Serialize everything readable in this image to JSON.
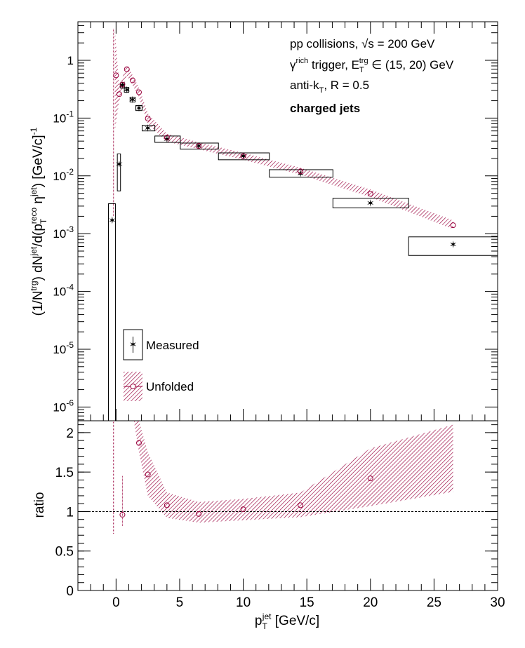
{
  "chart_data": [
    {
      "panel": "top",
      "type": "scatter",
      "y_scale": "log",
      "xlim": [
        -3,
        30
      ],
      "ylim": [
        5e-07,
        5
      ],
      "y_ticks": [
        {
          "v": 1e-06,
          "exp": "-6"
        },
        {
          "v": 1e-05,
          "exp": "-5"
        },
        {
          "v": 0.0001,
          "exp": "-4"
        },
        {
          "v": 0.001,
          "exp": "-3"
        },
        {
          "v": 0.01,
          "exp": "-2"
        },
        {
          "v": 0.1,
          "exp": "-1"
        },
        {
          "v": 1,
          "label": "1"
        }
      ],
      "ylabel": {
        "a": "(1/N",
        "a_sup": "trg",
        "b": ") dN",
        "b_sup": "jet",
        "c": "/d(p",
        "c_sub": "T",
        "c_sup": "reco",
        "d": " η",
        "d_sup": "jet",
        "e": ") [GeV/c]",
        "e_sup": "-1"
      },
      "annotations": {
        "line1": "pp collisions, ",
        "line1_root": "√",
        "line1_rest": "s = 200 GeV",
        "line2_a": "γ",
        "line2_a_sup": "rich",
        "line2_b": " trigger, E",
        "line2_b_sub": "T",
        "line2_b_sup": "trg",
        "line2_c": " ∈ (15, 20) GeV",
        "line3_a": "anti-k",
        "line3_a_sub": "T",
        "line3_b": ", R = 0.5",
        "line4": "charged jets"
      },
      "legend": {
        "placement": "bottom-left",
        "entries": [
          "Measured",
          "Unfolded"
        ]
      },
      "series": [
        {
          "name": "Measured",
          "marker": "star",
          "color": "#333333",
          "points": [
            {
              "x": -0.3,
              "y": 0.0017,
              "xlo": -0.6,
              "xhi": -0.05,
              "ylo": 5e-07,
              "yhi": 0.0033
            },
            {
              "x": 0.25,
              "y": 0.016,
              "xlo": 0.1,
              "xhi": 0.35,
              "ylo": 0.0055,
              "yhi": 0.024
            },
            {
              "x": 0.5,
              "y": 0.37,
              "xlo": 0.35,
              "xhi": 0.65,
              "ylo": 0.33,
              "yhi": 0.41
            },
            {
              "x": 0.85,
              "y": 0.31,
              "xlo": 0.65,
              "xhi": 1.0,
              "ylo": 0.28,
              "yhi": 0.34
            },
            {
              "x": 1.3,
              "y": 0.21,
              "xlo": 1.1,
              "xhi": 1.5,
              "ylo": 0.19,
              "yhi": 0.23
            },
            {
              "x": 1.8,
              "y": 0.15,
              "xlo": 1.55,
              "xhi": 2.05,
              "ylo": 0.135,
              "yhi": 0.165
            },
            {
              "x": 2.5,
              "y": 0.067,
              "xlo": 2.05,
              "xhi": 3.05,
              "ylo": 0.06,
              "yhi": 0.075
            },
            {
              "x": 4.0,
              "y": 0.043,
              "xlo": 3.05,
              "xhi": 5.05,
              "ylo": 0.038,
              "yhi": 0.049
            },
            {
              "x": 6.5,
              "y": 0.033,
              "xlo": 5.05,
              "xhi": 8.05,
              "ylo": 0.029,
              "yhi": 0.037
            },
            {
              "x": 10.0,
              "y": 0.022,
              "xlo": 8.05,
              "xhi": 12.05,
              "ylo": 0.019,
              "yhi": 0.025
            },
            {
              "x": 14.5,
              "y": 0.011,
              "xlo": 12.05,
              "xhi": 17.05,
              "ylo": 0.0095,
              "yhi": 0.0128
            },
            {
              "x": 20.0,
              "y": 0.0034,
              "xlo": 17.05,
              "xhi": 23.0,
              "ylo": 0.0028,
              "yhi": 0.0041
            },
            {
              "x": 26.5,
              "y": 0.00065,
              "xlo": 23.0,
              "xhi": 30.0,
              "ylo": 0.00042,
              "yhi": 0.00088
            }
          ]
        },
        {
          "name": "Unfolded",
          "marker": "open-circle",
          "color": "#99003c",
          "points": [
            {
              "x": 0.0,
              "y": 0.55
            },
            {
              "x": 0.25,
              "y": 0.26
            },
            {
              "x": 0.5,
              "y": 0.38
            },
            {
              "x": 0.85,
              "y": 0.7
            },
            {
              "x": 1.3,
              "y": 0.45
            },
            {
              "x": 1.8,
              "y": 0.28
            },
            {
              "x": 2.5,
              "y": 0.098
            },
            {
              "x": 4.0,
              "y": 0.046
            },
            {
              "x": 6.5,
              "y": 0.033
            },
            {
              "x": 10.0,
              "y": 0.022
            },
            {
              "x": 14.5,
              "y": 0.012
            },
            {
              "x": 20.0,
              "y": 0.0049
            },
            {
              "x": 26.5,
              "y": 0.0014
            }
          ],
          "band": [
            {
              "x": -0.1,
              "lo": 0.06,
              "hi": 3.5
            },
            {
              "x": 0.25,
              "lo": 0.2,
              "hi": 0.35
            },
            {
              "x": 0.85,
              "lo": 0.55,
              "hi": 0.85
            },
            {
              "x": 1.3,
              "lo": 0.37,
              "hi": 0.55
            },
            {
              "x": 1.8,
              "lo": 0.23,
              "hi": 0.34
            },
            {
              "x": 2.5,
              "lo": 0.08,
              "hi": 0.12
            },
            {
              "x": 4.0,
              "lo": 0.039,
              "hi": 0.054
            },
            {
              "x": 6.5,
              "lo": 0.029,
              "hi": 0.038
            },
            {
              "x": 10.0,
              "lo": 0.019,
              "hi": 0.025
            },
            {
              "x": 14.5,
              "lo": 0.0105,
              "hi": 0.0138
            },
            {
              "x": 20.0,
              "lo": 0.0043,
              "hi": 0.0058
            },
            {
              "x": 26.5,
              "lo": 0.0012,
              "hi": 0.0017
            }
          ]
        }
      ]
    },
    {
      "panel": "bottom",
      "type": "scatter",
      "xlim": [
        -3,
        30
      ],
      "ylim": [
        0,
        2.15
      ],
      "xlabel": {
        "a": "p",
        "a_sub": "T",
        "a_sup": "jet",
        "b": " [GeV/c]"
      },
      "ylabel": "ratio",
      "x_ticks": [
        "0",
        "5",
        "10",
        "15",
        "20",
        "25",
        "30"
      ],
      "y_ticks": [
        "0",
        "0.5",
        "1",
        "1.5",
        "2"
      ],
      "reference_line": 1,
      "series": [
        {
          "name": "Unfolded",
          "marker": "open-circle",
          "color": "#99003c",
          "points": [
            {
              "x": 0.5,
              "y": 0.96
            },
            {
              "x": 1.8,
              "y": 1.87
            },
            {
              "x": 2.5,
              "y": 1.47
            },
            {
              "x": 4.0,
              "y": 1.08
            },
            {
              "x": 6.5,
              "y": 0.97
            },
            {
              "x": 10.0,
              "y": 1.03
            },
            {
              "x": 14.5,
              "y": 1.08
            },
            {
              "x": 20.0,
              "y": 1.42
            }
          ],
          "band": [
            {
              "x": 1.4,
              "lo": 2.15,
              "hi": 2.15
            },
            {
              "x": 1.8,
              "lo": 1.75,
              "hi": 2.15
            },
            {
              "x": 2.5,
              "lo": 1.2,
              "hi": 1.75
            },
            {
              "x": 4.0,
              "lo": 0.92,
              "hi": 1.24
            },
            {
              "x": 6.5,
              "lo": 0.86,
              "hi": 1.12
            },
            {
              "x": 10.0,
              "lo": 0.89,
              "hi": 1.16
            },
            {
              "x": 14.5,
              "lo": 0.93,
              "hi": 1.24
            },
            {
              "x": 20.0,
              "lo": 1.07,
              "hi": 1.8
            },
            {
              "x": 26.5,
              "lo": 1.25,
              "hi": 2.1
            }
          ],
          "spike": {
            "x": -0.2,
            "lo": 0.72,
            "hi": 2.15
          },
          "spike2": {
            "x": 0.5,
            "lo": 0.82,
            "hi": 1.45
          }
        }
      ]
    }
  ]
}
